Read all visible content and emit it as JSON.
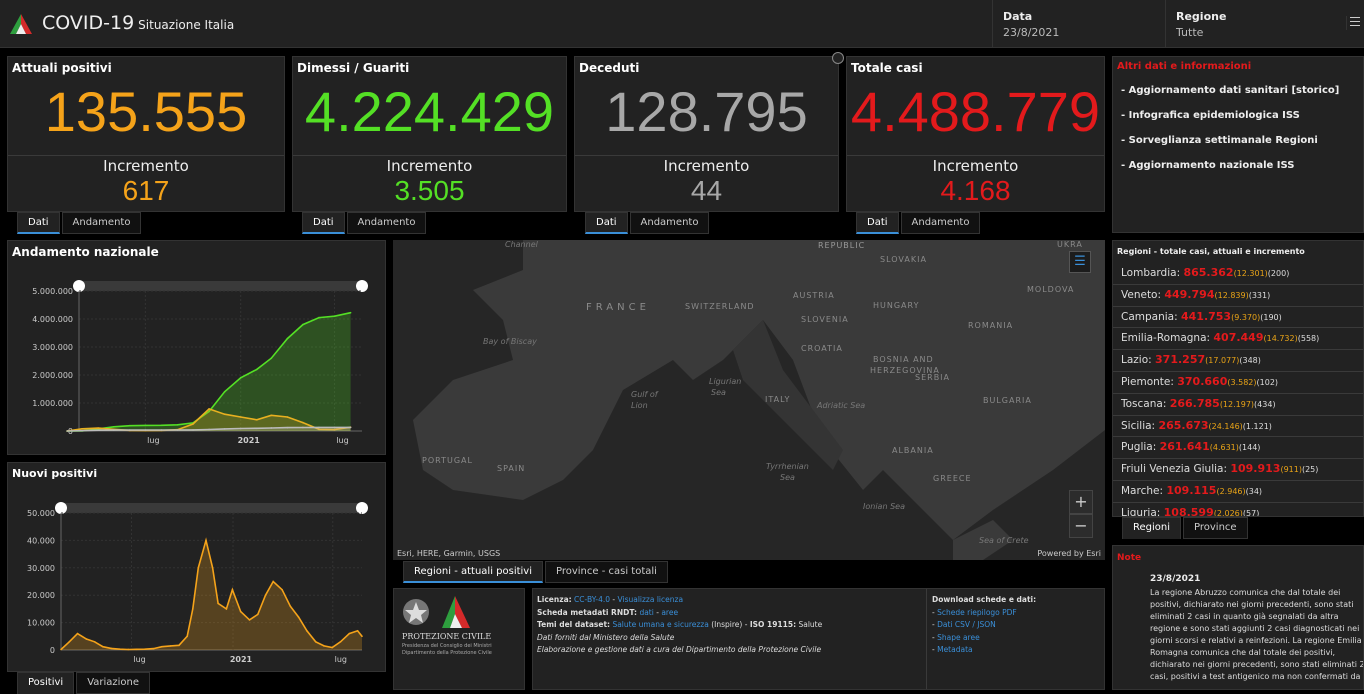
{
  "header": {
    "title": "COVID-19",
    "subtitle": "Situazione Italia",
    "data_label": "Data",
    "data_value": "23/8/2021",
    "regione_label": "Regione",
    "regione_value": "Tutte"
  },
  "cards": [
    {
      "title": "Attuali positivi",
      "value": "135.555",
      "inc_label": "Incremento",
      "inc": "617",
      "color": "#f5a31a",
      "tabs": [
        "Dati",
        "Andamento"
      ]
    },
    {
      "title": "Dimessi / Guariti",
      "value": "4.224.429",
      "inc_label": "Incremento",
      "inc": "3.505",
      "color": "#54e025",
      "tabs": [
        "Dati",
        "Andamento"
      ]
    },
    {
      "title": "Deceduti",
      "value": "128.795",
      "inc_label": "Incremento",
      "inc": "44",
      "color": "#a8a8a8",
      "tabs": [
        "Dati",
        "Andamento"
      ]
    },
    {
      "title": "Totale casi",
      "value": "4.488.779",
      "inc_label": "Incremento",
      "inc": "4.168",
      "color": "#e31a1c",
      "tabs": [
        "Dati",
        "Andamento"
      ]
    }
  ],
  "altri": {
    "title": "Altri dati e informazioni",
    "items": [
      "- Aggiornamento dati sanitari [storico]",
      "- Infografica epidemiologica ISS",
      "- Sorveglianza settimanale Regioni",
      "- Aggiornamento nazionale ISS"
    ]
  },
  "chart_data": [
    {
      "type": "area",
      "title": "Andamento nazionale",
      "ylim": [
        0,
        5000000
      ],
      "yticks": [
        "0",
        "1.000.000",
        "2.000.000",
        "3.000.000",
        "4.000.000",
        "5.000.000"
      ],
      "xticks": [
        "lug",
        "2021",
        "lug"
      ],
      "x": [
        "2020-02",
        "2020-03",
        "2020-04",
        "2020-05",
        "2020-06",
        "2020-07",
        "2020-08",
        "2020-09",
        "2020-10",
        "2020-11",
        "2020-12",
        "2021-01",
        "2021-02",
        "2021-03",
        "2021-04",
        "2021-05",
        "2021-06",
        "2021-07",
        "2021-08"
      ],
      "series": [
        {
          "color": "#54e025",
          "values": [
            0,
            5000,
            75000,
            150000,
            190000,
            200000,
            205000,
            220000,
            290000,
            700000,
            1400000,
            1900000,
            2200000,
            2600000,
            3300000,
            3800000,
            4050000,
            4100000,
            4224429
          ]
        },
        {
          "color": "#e8b020",
          "values": [
            0,
            80000,
            105000,
            60000,
            20000,
            13000,
            20000,
            45000,
            250000,
            790000,
            600000,
            500000,
            400000,
            560000,
            500000,
            300000,
            60000,
            50000,
            135555
          ]
        },
        {
          "color": "#bbbbbb",
          "values": [
            0,
            12000,
            28000,
            33000,
            34500,
            35000,
            35400,
            36000,
            38000,
            55000,
            74000,
            88000,
            97000,
            108000,
            120000,
            126000,
            127500,
            128000,
            128795
          ]
        }
      ],
      "tabs": []
    },
    {
      "type": "area",
      "title": "Nuovi positivi",
      "ylim": [
        0,
        50000
      ],
      "yticks": [
        "0",
        "10.000",
        "20.000",
        "30.000",
        "40.000",
        "50.000"
      ],
      "xticks": [
        "lug",
        "2021",
        "lug"
      ],
      "x": [
        "2020-02-24",
        "2020-03-10",
        "2020-03-25",
        "2020-04-10",
        "2020-04-25",
        "2020-05-10",
        "2020-05-25",
        "2020-06-10",
        "2020-06-25",
        "2020-07-10",
        "2020-07-25",
        "2020-08-10",
        "2020-08-25",
        "2020-09-10",
        "2020-09-25",
        "2020-10-10",
        "2020-10-20",
        "2020-10-30",
        "2020-11-13",
        "2020-11-25",
        "2020-12-05",
        "2020-12-20",
        "2020-12-31",
        "2021-01-15",
        "2021-01-31",
        "2021-02-15",
        "2021-03-01",
        "2021-03-15",
        "2021-03-31",
        "2021-04-15",
        "2021-04-30",
        "2021-05-15",
        "2021-05-31",
        "2021-06-15",
        "2021-06-30",
        "2021-07-15",
        "2021-07-31",
        "2021-08-15",
        "2021-08-23"
      ],
      "values": [
        200,
        3000,
        6000,
        4000,
        3000,
        1200,
        600,
        300,
        200,
        250,
        300,
        500,
        1200,
        1500,
        1700,
        5000,
        15000,
        30000,
        40000,
        30000,
        17000,
        15000,
        22000,
        14000,
        11000,
        13000,
        20000,
        25000,
        22000,
        16000,
        12000,
        7000,
        3000,
        1500,
        900,
        3000,
        6000,
        7000,
        5000
      ],
      "color": "#f5a31a",
      "tabs": [
        "Positivi",
        "Variazione"
      ]
    }
  ],
  "map": {
    "tabs": [
      "Regioni - attuali positivi",
      "Province - casi totali"
    ],
    "attribution": "Esri, HERE, Garmin, USGS",
    "powered": "Powered by Esri",
    "labels": [
      "Channel",
      "REPUBLIC",
      "SLOVAKIA",
      "UKRA",
      "MOLDOVA",
      "FRANCE",
      "SWITZERLAND",
      "AUSTRIA",
      "HUNGARY",
      "SLOVENIA",
      "ROMANIA",
      "Bay of Biscay",
      "CROATIA",
      "BOSNIA AND",
      "HERZEGOVINA",
      "SERBIA",
      "Gulf of",
      "Lion",
      "Ligurian",
      "Sea",
      "ITALY",
      "Adriatic Sea",
      "BULGARIA",
      "PORTUGAL",
      "SPAIN",
      "Tyrrhenian",
      "Sea",
      "ALBANIA",
      "GREECE",
      "Ionian Sea",
      "Sea of Crete"
    ],
    "zoom_in": "+",
    "zoom_out": "−"
  },
  "regioni": {
    "title": "Regioni - totale casi, attuali e incremento",
    "tabs": [
      "Regioni",
      "Province"
    ],
    "rows": [
      {
        "name": "Lombardia:",
        "totale": "865.362",
        "attuali": "(12.301)",
        "inc": "(200)"
      },
      {
        "name": "Veneto:",
        "totale": "449.794",
        "attuali": "(12.839)",
        "inc": "(331)"
      },
      {
        "name": "Campania:",
        "totale": "441.753",
        "attuali": "(9.370)",
        "inc": "(190)"
      },
      {
        "name": "Emilia-Romagna:",
        "totale": "407.449",
        "attuali": "(14.732)",
        "inc": "(558)"
      },
      {
        "name": "Lazio:",
        "totale": "371.257",
        "attuali": "(17.077)",
        "inc": "(348)"
      },
      {
        "name": "Piemonte:",
        "totale": "370.660",
        "attuali": "(3.582)",
        "inc": "(102)"
      },
      {
        "name": "Toscana:",
        "totale": "266.785",
        "attuali": "(12.197)",
        "inc": "(434)"
      },
      {
        "name": "Sicilia:",
        "totale": "265.673",
        "attuali": "(24.146)",
        "inc": "(1.121)"
      },
      {
        "name": "Puglia:",
        "totale": "261.641",
        "attuali": "(4.631)",
        "inc": "(144)"
      },
      {
        "name": "Friuli Venezia Giulia:",
        "totale": "109.913",
        "attuali": "(911)",
        "inc": "(25)"
      },
      {
        "name": "Marche:",
        "totale": "109.115",
        "attuali": "(2.946)",
        "inc": "(34)"
      },
      {
        "name": "Liguria:",
        "totale": "108.599",
        "attuali": "(2.026)",
        "inc": "(57)"
      }
    ]
  },
  "note": {
    "title": "Note",
    "date": "23/8/2021",
    "text": "La regione Abruzzo comunica che dal totale dei positivi, dichiarato nei giorni precedenti, sono stati eliminati 2 casi in quanto già segnalati da altra regione e sono stati aggiunti 2 casi diagnosticati nei giorni scorsi e relativi a reinfezioni. La regione Emilia Romagna comunica che dal totale dei positivi, dichiarato nei giorni precedenti, sono stati eliminati 2 casi, positivi a test antigenico ma non confermati da"
  },
  "logo": {
    "name": "PROTEZIONE CIVILE",
    "sub1": "Presidenza del Consiglio dei Ministri",
    "sub2": "Dipartimento della Protezione Civile"
  },
  "info": {
    "licenza_l": "Licenza:",
    "licenza_v": "CC-BY-4.0",
    "licenza_link": "Visualizza licenza",
    "rndt_l": "Scheda metadati RNDT:",
    "rndt_a": "dati",
    "rndt_b": "aree",
    "temi_l": "Temi del dataset:",
    "temi_v": "Salute umana e sicurezza",
    "temi_rest": "(Inspire) - ",
    "iso_l": "ISO 19115:",
    "iso_v": "Salute",
    "line4": "Dati forniti dal Ministero della Salute",
    "line5": "Elaborazione e gestione dati a cura del Dipartimento della Protezione Civile",
    "download_title": "Download schede e dati:",
    "downloads": [
      "Schede riepilogo PDF",
      "Dati CSV / JSON",
      "Shape aree",
      "Metadata"
    ]
  }
}
